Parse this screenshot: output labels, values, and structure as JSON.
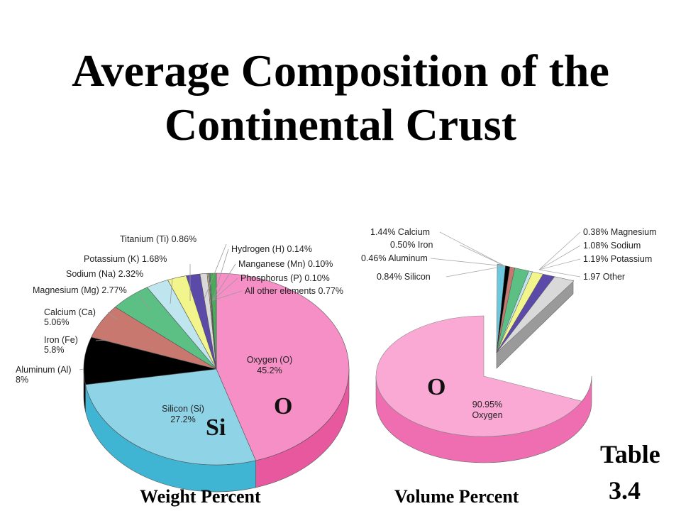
{
  "title_line1": "Average Composition of the",
  "title_line2": "Continental Crust",
  "chart_data": [
    {
      "type": "pie",
      "caption": "Weight Percent",
      "overlay_label_o": "O",
      "overlay_label_si": "Si",
      "slices": [
        {
          "label": "Oxygen (O)",
          "value_label": "45.2%",
          "value": 45.2,
          "color": "#f58fc6",
          "side": "#e8589e"
        },
        {
          "label": "Silicon (Si)",
          "value_label": "27.2%",
          "value": 27.2,
          "color": "#8ed3e6",
          "side": "#3fb5d3"
        },
        {
          "label": "Aluminum (Al)",
          "value_label": "8%",
          "value": 8,
          "color": "#000000",
          "side": "#000000"
        },
        {
          "label": "Iron (Fe)",
          "value_label": "5.8%",
          "value": 5.8,
          "color": "#c8786f",
          "side": "#a85a52"
        },
        {
          "label": "Calcium (Ca)",
          "value_label": "5.06%",
          "value": 5.06,
          "color": "#5cbf84",
          "side": "#3d9d64"
        },
        {
          "label": "Magnesium (Mg) 2.77%",
          "value": 2.77,
          "color": "#bfe6ef",
          "side": "#8cc8d6"
        },
        {
          "label": "Sodium (Na) 2.32%",
          "value": 2.32,
          "color": "#f2f58c",
          "side": "#cfd266"
        },
        {
          "label": "Potassium (K) 1.68%",
          "value": 1.68,
          "color": "#5b4aa8",
          "side": "#3e3080"
        },
        {
          "label": "Titanium (Ti) 0.86%",
          "value": 0.86,
          "color": "#d9d9d9",
          "side": "#a9a9a9"
        },
        {
          "label": "Hydrogen (H) 0.14%",
          "value": 0.14,
          "color": "#f5d08c",
          "side": "#d0a860"
        },
        {
          "label": "Manganese (Mn) 0.10%",
          "value": 0.1,
          "color": "#9ad0a0",
          "side": "#70a878"
        },
        {
          "label": "Phosphorus (P) 0.10%",
          "value": 0.1,
          "color": "#b58ad6",
          "side": "#8a62b0"
        },
        {
          "label": "All other elements 0.77%",
          "value": 0.77,
          "color": "#4aaa5a",
          "side": "#2f8040"
        }
      ]
    },
    {
      "type": "pie",
      "caption": "Volume Percent",
      "overlay_label_o": "O",
      "slices": [
        {
          "label": "90.95% Oxygen",
          "value": 90.95,
          "color": "#f9a9d3",
          "side": "#ef6eb2"
        },
        {
          "label": "0.84% Silicon",
          "value": 0.84,
          "color": "#6cc8de",
          "side": "#3fa6c0"
        },
        {
          "label": "0.46% Aluminum",
          "value": 0.46,
          "color": "#000000",
          "side": "#000000"
        },
        {
          "label": "0.50% Iron",
          "value": 0.5,
          "color": "#c8786f",
          "side": "#a85a52"
        },
        {
          "label": "1.44% Calcium",
          "value": 1.44,
          "color": "#5cbf84",
          "side": "#3d9d64"
        },
        {
          "label": "0.38% Magnesium",
          "value": 0.38,
          "color": "#bfe6ef",
          "side": "#8cc8d6"
        },
        {
          "label": "1.08% Sodium",
          "value": 1.08,
          "color": "#f2f58c",
          "side": "#cfd266"
        },
        {
          "label": "1.19% Potassium",
          "value": 1.19,
          "color": "#5b4aa8",
          "side": "#3e3080"
        },
        {
          "label": "1.97 Other",
          "value": 1.97,
          "color": "#d9d9d9",
          "side": "#999999"
        }
      ]
    }
  ],
  "table_ref_line1": "Table",
  "table_ref_line2": "3.4"
}
